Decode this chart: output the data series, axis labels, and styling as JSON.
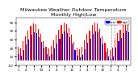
{
  "title_line1": "Milwaukee Weather Outdoor Temperature",
  "title_line2": "Monthly High/Low",
  "title_fontsize": 4.5,
  "bar_width": 0.35,
  "high_color": "#ff0000",
  "low_color": "#0000ff",
  "background_color": "#ffffff",
  "legend_high": "High",
  "legend_low": "Low",
  "ylim": [
    -10,
    100
  ],
  "yticks": [
    -10,
    10,
    30,
    50,
    70,
    90
  ],
  "month_labels": [
    "1",
    "2",
    "3",
    "4",
    "5",
    "6",
    "7",
    "8",
    "9",
    "10",
    "11",
    "12",
    "1",
    "2",
    "3",
    "4",
    "5",
    "6",
    "7",
    "8",
    "9",
    "10",
    "11",
    "12",
    "1",
    "2",
    "3",
    "4",
    "5",
    "6",
    "7",
    "8",
    "9",
    "10",
    "11",
    "12",
    "1",
    "2",
    "3",
    "4",
    "5",
    "6",
    "7",
    "8"
  ],
  "highs": [
    32,
    28,
    45,
    58,
    70,
    82,
    88,
    85,
    75,
    62,
    45,
    33,
    29,
    35,
    48,
    60,
    72,
    83,
    89,
    86,
    76,
    60,
    44,
    30,
    27,
    33,
    47,
    62,
    71,
    84,
    90,
    87,
    74,
    58,
    42,
    28,
    25,
    30,
    50,
    65,
    73,
    85,
    91,
    88
  ],
  "lows": [
    15,
    12,
    25,
    38,
    50,
    60,
    66,
    64,
    55,
    43,
    28,
    16,
    10,
    15,
    28,
    40,
    52,
    62,
    68,
    65,
    55,
    40,
    25,
    12,
    8,
    13,
    26,
    42,
    51,
    63,
    69,
    66,
    54,
    38,
    22,
    9,
    5,
    10,
    30,
    45,
    53,
    65,
    70,
    67
  ],
  "dashed_vlines": [
    36.5,
    37.5
  ],
  "tick_fontsize": 3.0
}
